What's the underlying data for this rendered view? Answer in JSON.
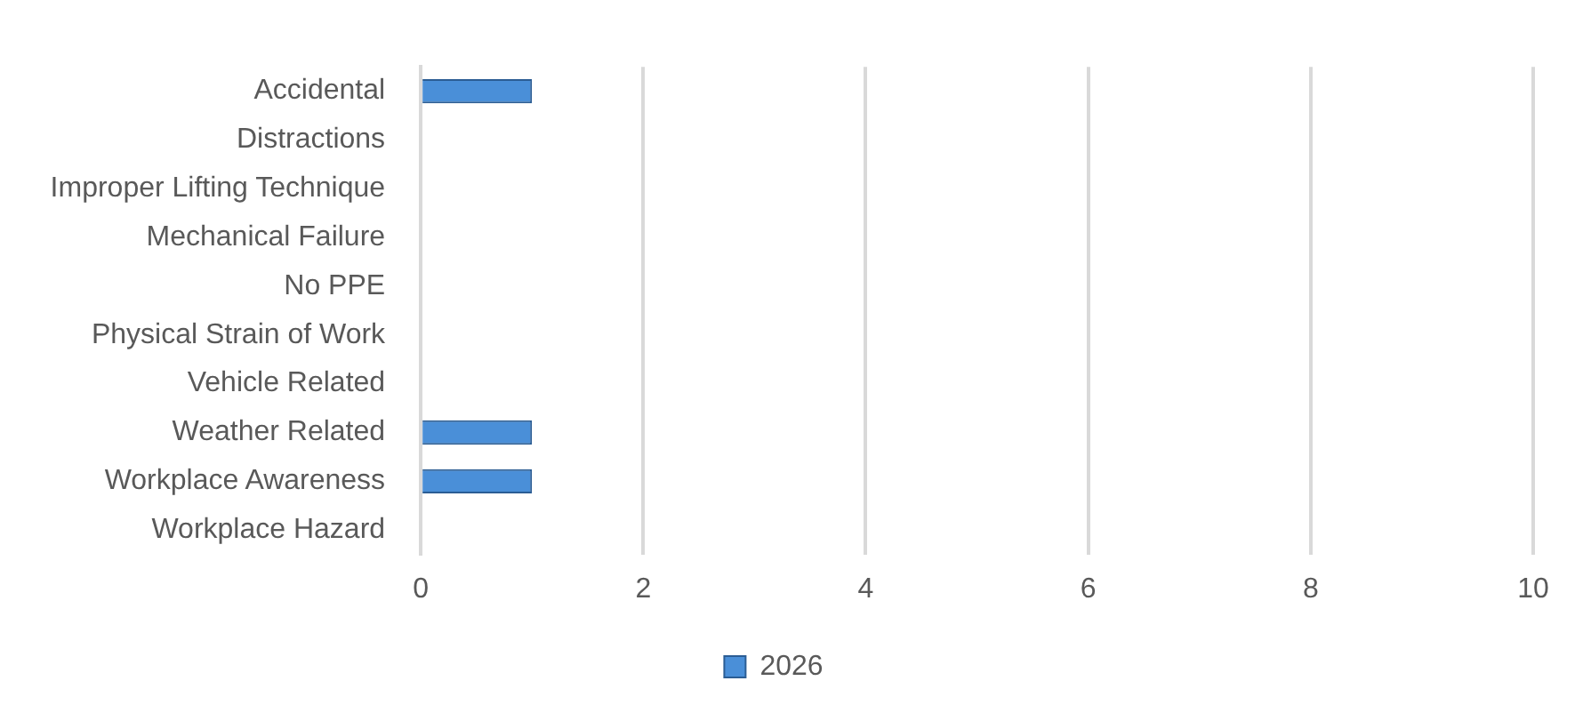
{
  "chart_data": {
    "type": "bar",
    "orientation": "horizontal",
    "categories": [
      "Accidental",
      "Distractions",
      "Improper Lifting Technique",
      "Mechanical Failure",
      "No PPE",
      "Physical Strain of Work",
      "Vehicle Related",
      "Weather Related",
      "Workplace Awareness",
      "Workplace Hazard"
    ],
    "series": [
      {
        "name": "2026",
        "color": "#4a8fd8",
        "values": [
          1,
          0,
          0,
          0,
          0,
          0,
          0,
          1,
          1,
          0
        ]
      }
    ],
    "xlim": [
      0,
      10
    ],
    "xticks": [
      0,
      2,
      4,
      6,
      8,
      10
    ],
    "grid": "x",
    "legend": "bottom"
  }
}
